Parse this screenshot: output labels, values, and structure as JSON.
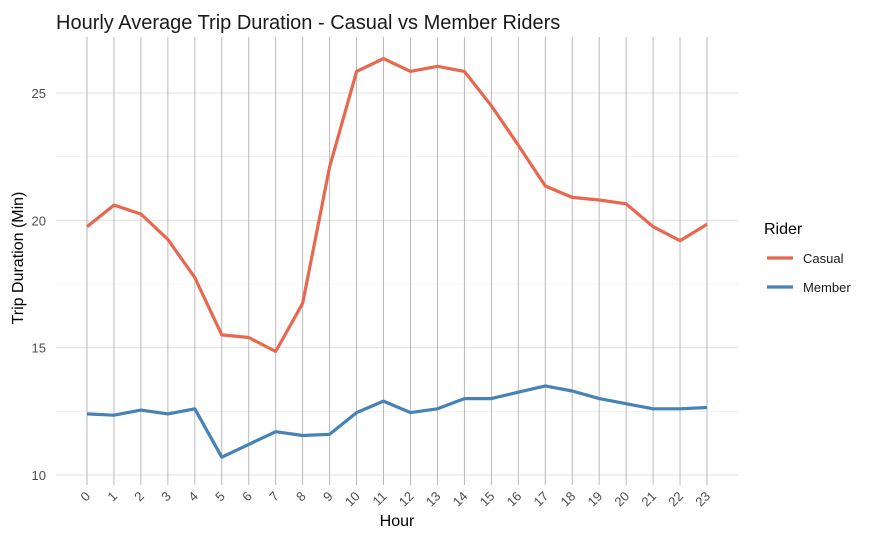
{
  "chart_data": {
    "type": "line",
    "title": "Hourly Average Trip Duration - Casual vs Member Riders",
    "xlabel": "Hour",
    "ylabel": "Trip Duration (Min)",
    "x": [
      0,
      1,
      2,
      3,
      4,
      5,
      6,
      7,
      8,
      9,
      10,
      11,
      12,
      13,
      14,
      15,
      16,
      17,
      18,
      19,
      20,
      21,
      22,
      23
    ],
    "ylim": [
      10,
      27
    ],
    "yticks": [
      10,
      15,
      20,
      25
    ],
    "grid": true,
    "legend": {
      "title": "Rider",
      "position": "right"
    },
    "series": [
      {
        "name": "Casual",
        "color": "#E8674F",
        "values": [
          19.75,
          20.6,
          20.25,
          19.25,
          17.75,
          15.5,
          15.4,
          14.85,
          16.75,
          22.1,
          25.85,
          26.35,
          25.85,
          26.05,
          25.85,
          24.5,
          22.95,
          21.35,
          20.9,
          20.8,
          20.65,
          19.75,
          19.2,
          19.85
        ]
      },
      {
        "name": "Member",
        "color": "#4682B4",
        "values": [
          12.4,
          12.35,
          12.55,
          12.4,
          12.6,
          10.7,
          11.2,
          11.7,
          11.55,
          11.6,
          12.45,
          12.9,
          12.45,
          12.6,
          13.0,
          13.0,
          13.25,
          13.5,
          13.3,
          13.0,
          12.8,
          12.6,
          12.6,
          12.65
        ]
      }
    ]
  }
}
